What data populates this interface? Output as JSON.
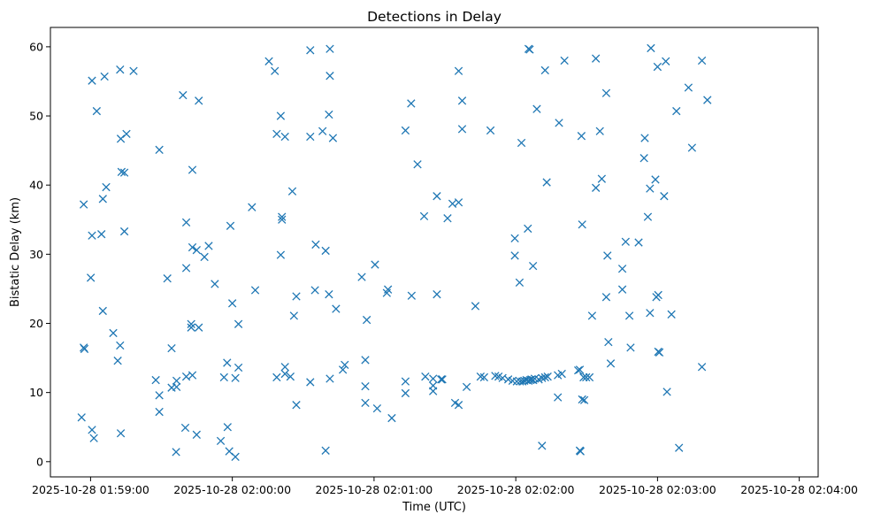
{
  "chart_data": {
    "type": "scatter",
    "title": "Detections in Delay",
    "xlabel": "Time (UTC)",
    "ylabel": "Bistatic Delay (km)",
    "marker": "x",
    "color": "#1f77b4",
    "grid": false,
    "xlim": [
      "2025-10-28 01:58:43",
      "2025-10-28 02:04:08"
    ],
    "ylim": [
      -2.2,
      62.8
    ],
    "xticks": [
      "2025-10-28 01:59:00",
      "2025-10-28 02:00:00",
      "2025-10-28 02:01:00",
      "2025-10-28 02:02:00",
      "2025-10-28 02:03:00",
      "2025-10-28 02:04:00"
    ],
    "yticks": [
      0,
      10,
      20,
      30,
      40,
      50,
      60
    ],
    "points": [
      [
        "01:58:56.2",
        6.4
      ],
      [
        "01:58:57.1",
        37.2
      ],
      [
        "01:58:57.1",
        16.5
      ],
      [
        "01:58:57.4",
        16.3
      ],
      [
        "01:59:00.1",
        26.6
      ],
      [
        "01:59:00.6",
        55.1
      ],
      [
        "01:59:00.6",
        32.7
      ],
      [
        "01:59:00.6",
        4.6
      ],
      [
        "01:59:01.4",
        3.4
      ],
      [
        "01:59:02.6",
        50.7
      ],
      [
        "01:59:04.6",
        32.9
      ],
      [
        "01:59:05.2",
        38.0
      ],
      [
        "01:59:05.2",
        21.8
      ],
      [
        "01:59:05.9",
        55.7
      ],
      [
        "01:59:06.6",
        39.7
      ],
      [
        "01:59:09.6",
        18.6
      ],
      [
        "01:59:11.5",
        14.6
      ],
      [
        "01:59:12.5",
        56.7
      ],
      [
        "01:59:12.5",
        16.8
      ],
      [
        "01:59:12.8",
        4.1
      ],
      [
        "01:59:12.8",
        46.7
      ],
      [
        "01:59:13.1",
        41.9
      ],
      [
        "01:59:14.3",
        41.8
      ],
      [
        "01:59:14.3",
        33.3
      ],
      [
        "01:59:15.2",
        47.4
      ],
      [
        "01:59:18.2",
        56.5
      ],
      [
        "01:59:27.6",
        11.8
      ],
      [
        "01:59:29.1",
        45.1
      ],
      [
        "01:59:29.1",
        9.6
      ],
      [
        "01:59:29.1",
        7.2
      ],
      [
        "01:59:32.5",
        26.5
      ],
      [
        "01:59:34.3",
        16.4
      ],
      [
        "01:59:34.3",
        10.7
      ],
      [
        "01:59:36.2",
        1.4
      ],
      [
        "01:59:36.4",
        11.7
      ],
      [
        "01:59:36.4",
        10.8
      ],
      [
        "01:59:39.1",
        53.0
      ],
      [
        "01:59:40.1",
        4.9
      ],
      [
        "01:59:40.5",
        34.6
      ],
      [
        "01:59:40.5",
        28.0
      ],
      [
        "01:59:40.5",
        12.3
      ],
      [
        "01:59:42.6",
        19.9
      ],
      [
        "01:59:42.6",
        19.4
      ],
      [
        "01:59:43.1",
        42.2
      ],
      [
        "01:59:43.1",
        31.0
      ],
      [
        "01:59:43.1",
        12.5
      ],
      [
        "01:59:44.9",
        30.6
      ],
      [
        "01:59:44.9",
        3.9
      ],
      [
        "01:59:45.8",
        52.2
      ],
      [
        "01:59:45.8",
        19.4
      ],
      [
        "01:59:48.2",
        29.6
      ],
      [
        "01:59:50.0",
        31.2
      ],
      [
        "01:59:52.6",
        25.7
      ],
      [
        "01:59:55.1",
        3.0
      ],
      [
        "01:59:56.5",
        12.2
      ],
      [
        "01:59:57.8",
        14.3
      ],
      [
        "01:59:58.0",
        5.0
      ],
      [
        "01:59:58.7",
        1.5
      ],
      [
        "01:59:59.2",
        34.1
      ],
      [
        "02:00:00.0",
        22.9
      ],
      [
        "02:00:01.3",
        0.7
      ],
      [
        "02:00:01.3",
        12.1
      ],
      [
        "02:00:02.6",
        13.6
      ],
      [
        "02:00:02.6",
        19.9
      ],
      [
        "02:00:08.3",
        36.8
      ],
      [
        "02:00:09.7",
        24.8
      ],
      [
        "02:00:15.5",
        57.9
      ],
      [
        "02:00:18.0",
        56.5
      ],
      [
        "02:00:18.8",
        47.4
      ],
      [
        "02:00:18.8",
        12.2
      ],
      [
        "02:00:20.5",
        29.9
      ],
      [
        "02:00:20.5",
        50.0
      ],
      [
        "02:00:21.0",
        35.4
      ],
      [
        "02:00:21.0",
        35.0
      ],
      [
        "02:00:22.3",
        47.0
      ],
      [
        "02:00:22.3",
        13.7
      ],
      [
        "02:00:22.3",
        12.7
      ],
      [
        "02:00:24.6",
        12.3
      ],
      [
        "02:00:25.4",
        39.1
      ],
      [
        "02:00:26.1",
        21.1
      ],
      [
        "02:00:27.1",
        8.2
      ],
      [
        "02:00:27.1",
        23.9
      ],
      [
        "02:00:33.0",
        59.5
      ],
      [
        "02:00:33.0",
        47.0
      ],
      [
        "02:00:33.0",
        11.5
      ],
      [
        "02:00:35.0",
        24.8
      ],
      [
        "02:00:35.3",
        31.4
      ],
      [
        "02:00:38.2",
        47.8
      ],
      [
        "02:00:39.5",
        30.5
      ],
      [
        "02:00:39.5",
        1.6
      ],
      [
        "02:00:40.9",
        24.2
      ],
      [
        "02:00:40.9",
        50.2
      ],
      [
        "02:00:41.3",
        59.7
      ],
      [
        "02:00:41.3",
        55.8
      ],
      [
        "02:00:41.3",
        12.0
      ],
      [
        "02:00:42.6",
        46.8
      ],
      [
        "02:00:43.9",
        22.1
      ],
      [
        "02:00:46.8",
        13.3
      ],
      [
        "02:00:47.6",
        14.0
      ],
      [
        "02:00:54.8",
        26.7
      ],
      [
        "02:00:56.3",
        14.7
      ],
      [
        "02:00:56.3",
        10.9
      ],
      [
        "02:00:56.3",
        8.5
      ],
      [
        "02:00:56.9",
        20.5
      ],
      [
        "02:01:00.4",
        28.5
      ],
      [
        "02:01:01.3",
        7.7
      ],
      [
        "02:01:05.4",
        24.4
      ],
      [
        "02:01:05.9",
        24.9
      ],
      [
        "02:01:07.5",
        6.3
      ],
      [
        "02:01:13.3",
        47.9
      ],
      [
        "02:01:13.3",
        11.6
      ],
      [
        "02:01:13.3",
        9.9
      ],
      [
        "02:01:15.7",
        51.8
      ],
      [
        "02:01:15.9",
        24.0
      ],
      [
        "02:01:18.4",
        43.0
      ],
      [
        "02:01:21.2",
        35.5
      ],
      [
        "02:01:21.7",
        12.3
      ],
      [
        "02:01:25.0",
        12.0
      ],
      [
        "02:01:25.0",
        11.0
      ],
      [
        "02:01:25.0",
        10.2
      ],
      [
        "02:01:26.6",
        38.4
      ],
      [
        "02:01:26.6",
        24.2
      ],
      [
        "02:01:28.4",
        11.9
      ],
      [
        "02:01:28.9",
        11.9
      ],
      [
        "02:01:31.1",
        35.2
      ],
      [
        "02:01:33.2",
        37.3
      ],
      [
        "02:01:34.3",
        8.5
      ],
      [
        "02:01:35.8",
        37.5
      ],
      [
        "02:01:35.8",
        8.2
      ],
      [
        "02:01:35.8",
        56.5
      ],
      [
        "02:01:37.3",
        52.2
      ],
      [
        "02:01:37.3",
        48.1
      ],
      [
        "02:01:39.2",
        10.8
      ],
      [
        "02:01:42.9",
        22.5
      ],
      [
        "02:01:45.1",
        12.3
      ],
      [
        "02:01:46.6",
        12.2
      ],
      [
        "02:01:49.3",
        47.9
      ],
      [
        "02:01:51.3",
        12.4
      ],
      [
        "02:01:52.7",
        12.3
      ],
      [
        "02:01:54.4",
        12.1
      ],
      [
        "02:01:56.8",
        11.9
      ],
      [
        "02:01:58.6",
        11.7
      ],
      [
        "02:01:59.6",
        32.3
      ],
      [
        "02:01:59.6",
        29.8
      ],
      [
        "02:02:00.4",
        11.6
      ],
      [
        "02:02:01.6",
        25.9
      ],
      [
        "02:02:01.8",
        11.6
      ],
      [
        "02:02:02.4",
        46.1
      ],
      [
        "02:02:02.8",
        11.6
      ],
      [
        "02:02:03.6",
        11.7
      ],
      [
        "02:02:04.5",
        11.8
      ],
      [
        "02:02:05.1",
        33.7
      ],
      [
        "02:02:05.4",
        59.7
      ],
      [
        "02:02:05.4",
        11.7
      ],
      [
        "02:02:05.9",
        59.6
      ],
      [
        "02:02:06.1",
        11.8
      ],
      [
        "02:02:06.6",
        11.9
      ],
      [
        "02:02:07.3",
        28.3
      ],
      [
        "02:02:07.4",
        11.8
      ],
      [
        "02:02:08.0",
        12.0
      ],
      [
        "02:02:08.9",
        51.0
      ],
      [
        "02:02:09.7",
        11.9
      ],
      [
        "02:02:11.1",
        2.3
      ],
      [
        "02:02:11.1",
        12.1
      ],
      [
        "02:02:12.4",
        56.6
      ],
      [
        "02:02:12.4",
        12.2
      ],
      [
        "02:02:13.1",
        40.4
      ],
      [
        "02:02:13.5",
        12.3
      ],
      [
        "02:02:17.8",
        12.5
      ],
      [
        "02:02:17.8",
        9.3
      ],
      [
        "02:02:18.3",
        49.0
      ],
      [
        "02:02:19.5",
        12.7
      ],
      [
        "02:02:20.6",
        58.0
      ],
      [
        "02:02:26.4",
        13.2
      ],
      [
        "02:02:27.1",
        13.3
      ],
      [
        "02:02:27.1",
        1.6
      ],
      [
        "02:02:27.4",
        1.5
      ],
      [
        "02:02:27.8",
        47.1
      ],
      [
        "02:02:28.1",
        34.3
      ],
      [
        "02:02:28.7",
        12.2
      ],
      [
        "02:02:28.1",
        9.0
      ],
      [
        "02:02:29.0",
        8.9
      ],
      [
        "02:02:29.8",
        12.2
      ],
      [
        "02:02:31.2",
        12.2
      ],
      [
        "02:02:32.3",
        21.1
      ],
      [
        "02:02:33.9",
        58.3
      ],
      [
        "02:02:33.9",
        39.6
      ],
      [
        "02:02:35.6",
        47.8
      ],
      [
        "02:02:36.4",
        40.9
      ],
      [
        "02:02:38.3",
        53.3
      ],
      [
        "02:02:38.3",
        23.8
      ],
      [
        "02:02:38.8",
        29.8
      ],
      [
        "02:02:39.2",
        17.3
      ],
      [
        "02:02:40.2",
        14.2
      ],
      [
        "02:02:45.1",
        27.9
      ],
      [
        "02:02:45.1",
        24.9
      ],
      [
        "02:02:46.5",
        31.8
      ],
      [
        "02:02:48.1",
        21.1
      ],
      [
        "02:02:48.6",
        16.5
      ],
      [
        "02:02:52.0",
        31.7
      ],
      [
        "02:02:54.3",
        43.9
      ],
      [
        "02:02:54.6",
        46.8
      ],
      [
        "02:02:55.9",
        35.4
      ],
      [
        "02:02:56.8",
        39.5
      ],
      [
        "02:02:56.8",
        21.5
      ],
      [
        "02:02:57.2",
        59.8
      ],
      [
        "02:02:59.1",
        40.8
      ],
      [
        "02:03:00.0",
        57.1
      ],
      [
        "02:02:59.5",
        23.8
      ],
      [
        "02:03:00.3",
        24.1
      ],
      [
        "02:03:00.3",
        15.9
      ],
      [
        "02:03:00.8",
        15.8
      ],
      [
        "02:03:02.8",
        38.4
      ],
      [
        "02:03:03.5",
        57.9
      ],
      [
        "02:03:04.0",
        10.1
      ],
      [
        "02:03:05.9",
        21.3
      ],
      [
        "02:03:08.0",
        50.7
      ],
      [
        "02:03:09.1",
        2.0
      ],
      [
        "02:03:13.1",
        54.1
      ],
      [
        "02:03:14.6",
        45.4
      ],
      [
        "02:03:18.8",
        58.0
      ],
      [
        "02:03:18.8",
        13.7
      ],
      [
        "02:03:21.1",
        52.3
      ]
    ]
  }
}
